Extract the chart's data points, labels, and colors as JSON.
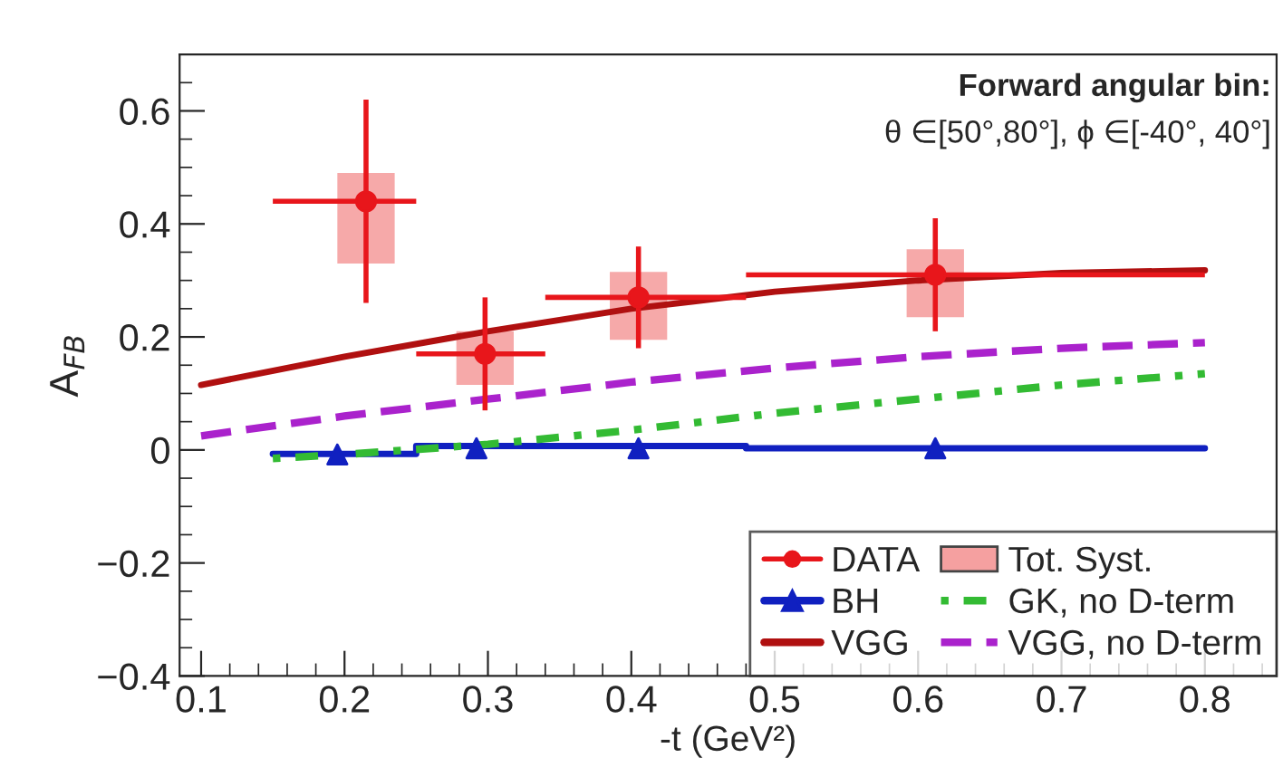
{
  "chart_data": {
    "type": "scatter",
    "xlabel": "-t (GeV²)",
    "ylabel": "A$_{FB}$",
    "xlim": [
      0.085,
      0.85
    ],
    "ylim": [
      -0.4,
      0.7
    ],
    "xticks": [
      0.1,
      0.2,
      0.3,
      0.4,
      0.5,
      0.6,
      0.7,
      0.8
    ],
    "yticks": [
      {
        "value": -0.4,
        "label": "−0.4"
      },
      {
        "value": -0.2,
        "label": "−0.2"
      },
      0,
      0.2,
      0.4,
      0.6
    ],
    "grid": false,
    "legend": "bottom right",
    "annotations": [
      "Forward angular bin:",
      "θ ∈[50°,80°], ϕ ∈[-40°, 40°]"
    ],
    "series": [
      {
        "name": "DATA",
        "color": "#e8161b",
        "marker": "circle",
        "x": [
          0.215,
          0.298,
          0.405,
          0.612
        ],
        "values": [
          0.44,
          0.17,
          0.27,
          0.31
        ],
        "errors": [
          0.18,
          0.1,
          0.09,
          0.1
        ],
        "xerrors": [
          [
            0.15,
            0.25
          ],
          [
            0.25,
            0.34
          ],
          [
            0.34,
            0.48
          ],
          [
            0.48,
            0.8
          ]
        ]
      },
      {
        "name": "BH",
        "type": "line",
        "color": "#1020c0",
        "marker": "none",
        "line_style": "solid",
        "x": [
          0.15,
          0.25,
          0.25,
          0.48,
          0.48,
          0.8
        ],
        "values": [
          -0.007,
          -0.007,
          0.007,
          0.007,
          0.003,
          0.003
        ]
      },
      {
        "name": "VGG",
        "type": "line",
        "color": "#b01010",
        "marker": "none",
        "line_style": "solid",
        "x": [
          0.1,
          0.2,
          0.3,
          0.4,
          0.5,
          0.6,
          0.7,
          0.8
        ],
        "values": [
          0.115,
          0.165,
          0.21,
          0.25,
          0.28,
          0.3,
          0.313,
          0.318
        ]
      },
      {
        "name": "Tot. Syst.",
        "type": "bar",
        "color": "#f5a0a0",
        "x": [
          0.215,
          0.298,
          0.405,
          0.612
        ],
        "base": [
          0.33,
          0.115,
          0.195,
          0.235
        ],
        "values": [
          0.16,
          0.095,
          0.12,
          0.12
        ]
      },
      {
        "name": "GK, no D-term",
        "type": "line",
        "color": "#33bb33",
        "marker": "none",
        "line_style": "dotted",
        "x": [
          0.15,
          0.2,
          0.3,
          0.4,
          0.5,
          0.6,
          0.7,
          0.8
        ],
        "values": [
          -0.015,
          -0.008,
          0.01,
          0.035,
          0.065,
          0.09,
          0.115,
          0.135
        ]
      },
      {
        "name": "VGG, no D-term",
        "type": "line",
        "color": "#aa22cc",
        "marker": "none",
        "line_style": "dashed",
        "x": [
          0.1,
          0.2,
          0.3,
          0.4,
          0.5,
          0.6,
          0.7,
          0.8
        ],
        "values": [
          0.025,
          0.06,
          0.09,
          0.12,
          0.145,
          0.165,
          0.18,
          0.19
        ]
      },
      {
        "color": "#1020c0",
        "marker": "triangle",
        "x": [
          0.195,
          0.292,
          0.405,
          0.612
        ],
        "values": [
          -0.008,
          0.003,
          0.003,
          0.003
        ]
      }
    ]
  }
}
